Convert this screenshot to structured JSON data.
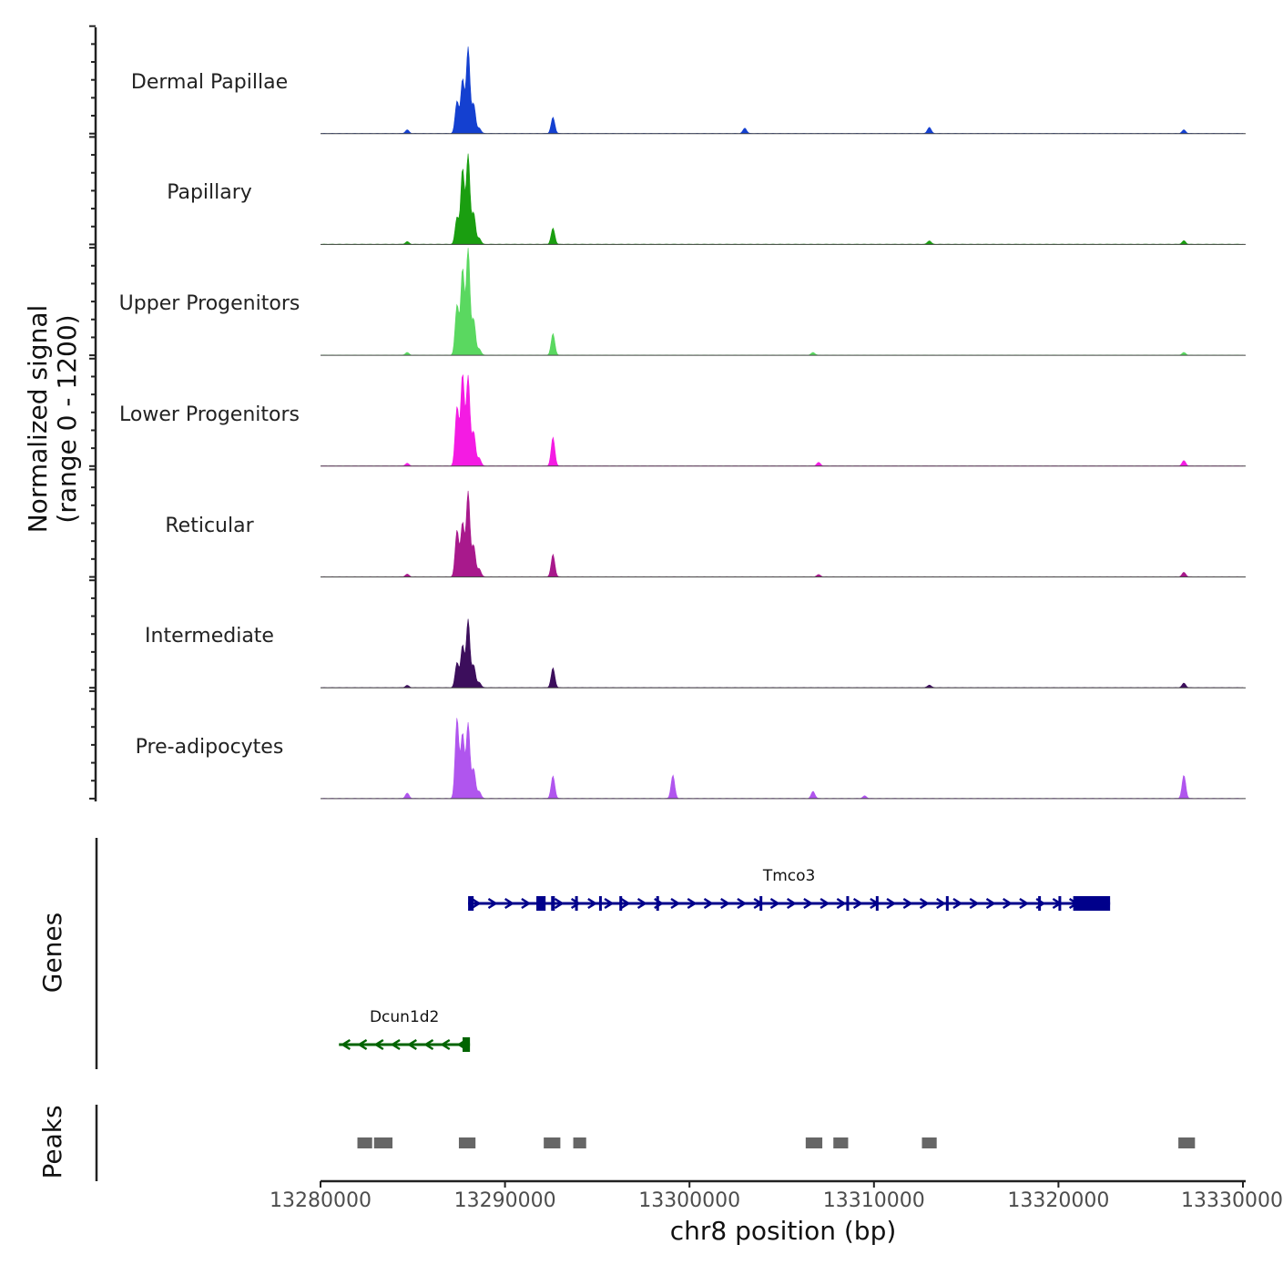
{
  "chart_data": {
    "type": "area",
    "title": "",
    "chromosome": "chr8",
    "xlabel": "chr8 position (bp)",
    "ylabel": "Normalized signal",
    "ylabel_range": "(range 0 - 1200)",
    "ylim": [
      0,
      1200
    ],
    "xlim": [
      13280000,
      13330000
    ],
    "x_ticks": [
      13280000,
      13290000,
      13300000,
      13310000,
      13320000,
      13330000
    ],
    "x_tick_labels": [
      "13280000",
      "13290000",
      "13300000",
      "13310000",
      "13320000",
      "13330000"
    ],
    "series": [
      {
        "name": "Dermal Papillae",
        "color": "#1440d0",
        "peaks": [
          [
            13284700,
            40
          ],
          [
            13287400,
            360
          ],
          [
            13287700,
            600
          ],
          [
            13288000,
            960
          ],
          [
            13288300,
            330
          ],
          [
            13288600,
            60
          ],
          [
            13292600,
            180
          ],
          [
            13303000,
            60
          ],
          [
            13313000,
            70
          ],
          [
            13326800,
            40
          ]
        ]
      },
      {
        "name": "Papillary",
        "color": "#1a9e10",
        "peaks": [
          [
            13284700,
            30
          ],
          [
            13287400,
            300
          ],
          [
            13287700,
            840
          ],
          [
            13288000,
            1000
          ],
          [
            13288300,
            350
          ],
          [
            13288600,
            70
          ],
          [
            13292600,
            180
          ],
          [
            13313000,
            40
          ],
          [
            13326800,
            40
          ]
        ]
      },
      {
        "name": "Upper Progenitors",
        "color": "#5ad860",
        "peaks": [
          [
            13284700,
            30
          ],
          [
            13287400,
            560
          ],
          [
            13287700,
            960
          ],
          [
            13288000,
            1200
          ],
          [
            13288300,
            400
          ],
          [
            13288600,
            70
          ],
          [
            13292600,
            240
          ],
          [
            13306700,
            30
          ],
          [
            13326800,
            30
          ]
        ]
      },
      {
        "name": "Lower Progenitors",
        "color": "#f41be3",
        "peaks": [
          [
            13284700,
            30
          ],
          [
            13287400,
            660
          ],
          [
            13287700,
            1020
          ],
          [
            13288000,
            1000
          ],
          [
            13288300,
            380
          ],
          [
            13288600,
            90
          ],
          [
            13292600,
            320
          ],
          [
            13307000,
            40
          ],
          [
            13326800,
            60
          ]
        ]
      },
      {
        "name": "Reticular",
        "color": "#a8198c",
        "peaks": [
          [
            13284700,
            30
          ],
          [
            13287400,
            520
          ],
          [
            13287700,
            600
          ],
          [
            13288000,
            950
          ],
          [
            13288300,
            350
          ],
          [
            13288600,
            90
          ],
          [
            13292600,
            250
          ],
          [
            13307000,
            25
          ],
          [
            13326800,
            50
          ]
        ]
      },
      {
        "name": "Intermediate",
        "color": "#3c0e5c",
        "peaks": [
          [
            13284700,
            25
          ],
          [
            13287400,
            280
          ],
          [
            13287700,
            470
          ],
          [
            13288000,
            760
          ],
          [
            13288300,
            250
          ],
          [
            13288600,
            60
          ],
          [
            13292600,
            220
          ],
          [
            13313000,
            30
          ],
          [
            13326800,
            50
          ]
        ]
      },
      {
        "name": "Pre-adipocytes",
        "color": "#b055ee",
        "peaks": [
          [
            13284700,
            60
          ],
          [
            13287400,
            900
          ],
          [
            13287700,
            720
          ],
          [
            13288000,
            840
          ],
          [
            13288300,
            330
          ],
          [
            13288600,
            80
          ],
          [
            13292600,
            250
          ],
          [
            13299100,
            260
          ],
          [
            13306700,
            80
          ],
          [
            13309500,
            30
          ],
          [
            13326800,
            260
          ]
        ]
      }
    ],
    "tracks": {
      "genes_label": "Genes",
      "peaks_label": "Peaks"
    },
    "genes": [
      {
        "name": "Tmco3",
        "strand": "+",
        "start": 13288000,
        "end": 13322800,
        "color": "#00008b",
        "exons": [
          [
            13288000,
            13288300
          ],
          [
            13291700,
            13292200
          ],
          [
            13292500,
            13292700
          ],
          [
            13293800,
            13293900
          ],
          [
            13295100,
            13295200
          ],
          [
            13296200,
            13296300
          ],
          [
            13298200,
            13298300
          ],
          [
            13303800,
            13303900
          ],
          [
            13308500,
            13308600
          ],
          [
            13310100,
            13310200
          ],
          [
            13313900,
            13314000
          ],
          [
            13318900,
            13319000
          ],
          [
            13320000,
            13320100
          ],
          [
            13320800,
            13322800
          ]
        ]
      },
      {
        "name": "Dcun1d2",
        "strand": "-",
        "start": 13281000,
        "end": 13288100,
        "color": "#006400",
        "exons": [
          [
            13287700,
            13288100
          ]
        ]
      }
    ],
    "peaks": [
      [
        13282000,
        13282800
      ],
      [
        13282900,
        13283900
      ],
      [
        13287500,
        13288400
      ],
      [
        13292100,
        13293000
      ],
      [
        13293700,
        13294400
      ],
      [
        13306300,
        13307200
      ],
      [
        13307800,
        13308600
      ],
      [
        13312600,
        13313400
      ],
      [
        13326500,
        13327400
      ]
    ],
    "peak_color": "#666666"
  }
}
